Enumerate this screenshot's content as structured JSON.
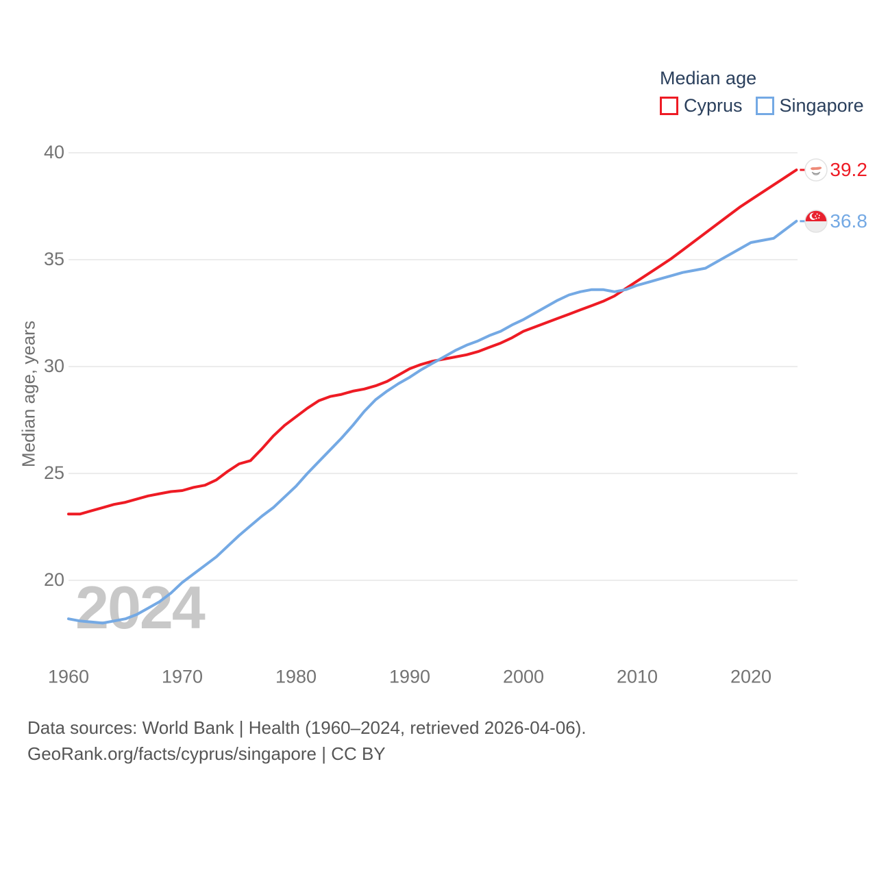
{
  "legend": {
    "title": "Median age",
    "items": [
      {
        "label": "Cyprus",
        "color": "#ee1b24"
      },
      {
        "label": "Singapore",
        "color": "#74a9e4"
      }
    ]
  },
  "y_axis": {
    "title": "Median age, years"
  },
  "watermark": "2024",
  "end_labels": [
    {
      "series": "Cyprus",
      "value": "39.2",
      "flag_icon": "cyprus-flag"
    },
    {
      "series": "Singapore",
      "value": "36.8",
      "flag_icon": "singapore-flag"
    }
  ],
  "footer": {
    "line1": "Data sources: World Bank | Health (1960–2024, retrieved 2026-04-06).",
    "line2": "GeoRank.org/facts/cyprus/singapore | CC BY"
  },
  "chart_data": {
    "type": "line",
    "title": "Median age",
    "xlabel": "",
    "ylabel": "Median age, years",
    "xlim": [
      1960,
      2024
    ],
    "ylim": [
      17.5,
      41
    ],
    "x_tick_years": [
      1960,
      1970,
      1980,
      1990,
      2000,
      2010,
      2020
    ],
    "y_ticks": [
      40,
      35,
      30,
      25,
      20
    ],
    "grid": "horizontal",
    "legend_position": "top-right",
    "x": [
      1960,
      1961,
      1962,
      1963,
      1964,
      1965,
      1966,
      1967,
      1968,
      1969,
      1970,
      1971,
      1972,
      1973,
      1974,
      1975,
      1976,
      1977,
      1978,
      1979,
      1980,
      1981,
      1982,
      1983,
      1984,
      1985,
      1986,
      1987,
      1988,
      1989,
      1990,
      1991,
      1992,
      1993,
      1994,
      1995,
      1996,
      1997,
      1998,
      1999,
      2000,
      2001,
      2002,
      2003,
      2004,
      2005,
      2006,
      2007,
      2008,
      2009,
      2010,
      2011,
      2012,
      2013,
      2014,
      2015,
      2016,
      2017,
      2018,
      2019,
      2020,
      2021,
      2022,
      2023,
      2024
    ],
    "series": [
      {
        "name": "Cyprus",
        "color": "#ee1b24",
        "end_label": "39.2",
        "values": [
          23.1,
          23.1,
          23.25,
          23.4,
          23.55,
          23.65,
          23.8,
          23.95,
          24.05,
          24.15,
          24.2,
          24.35,
          24.45,
          24.7,
          25.1,
          25.45,
          25.6,
          26.15,
          26.75,
          27.25,
          27.65,
          28.05,
          28.4,
          28.6,
          28.7,
          28.85,
          28.95,
          29.1,
          29.3,
          29.6,
          29.9,
          30.1,
          30.25,
          30.35,
          30.45,
          30.55,
          30.7,
          30.9,
          31.1,
          31.35,
          31.65,
          31.85,
          32.05,
          32.25,
          32.45,
          32.65,
          32.85,
          33.05,
          33.3,
          33.65,
          34.0,
          34.35,
          34.7,
          35.05,
          35.45,
          35.85,
          36.25,
          36.65,
          37.05,
          37.45,
          37.8,
          38.15,
          38.5,
          38.85,
          39.2
        ]
      },
      {
        "name": "Singapore",
        "color": "#74a9e4",
        "end_label": "36.8",
        "values": [
          18.2,
          18.1,
          18.05,
          18.0,
          18.1,
          18.2,
          18.4,
          18.7,
          19.0,
          19.4,
          19.9,
          20.3,
          20.7,
          21.1,
          21.6,
          22.1,
          22.55,
          23.0,
          23.4,
          23.9,
          24.4,
          25.0,
          25.55,
          26.1,
          26.65,
          27.25,
          27.9,
          28.45,
          28.85,
          29.2,
          29.5,
          29.85,
          30.15,
          30.45,
          30.75,
          31.0,
          31.2,
          31.45,
          31.65,
          31.95,
          32.2,
          32.5,
          32.8,
          33.1,
          33.35,
          33.5,
          33.6,
          33.6,
          33.5,
          33.6,
          33.8,
          33.95,
          34.1,
          34.25,
          34.4,
          34.5,
          34.6,
          34.9,
          35.2,
          35.5,
          35.8,
          35.9,
          36.0,
          36.4,
          36.8
        ]
      }
    ]
  }
}
